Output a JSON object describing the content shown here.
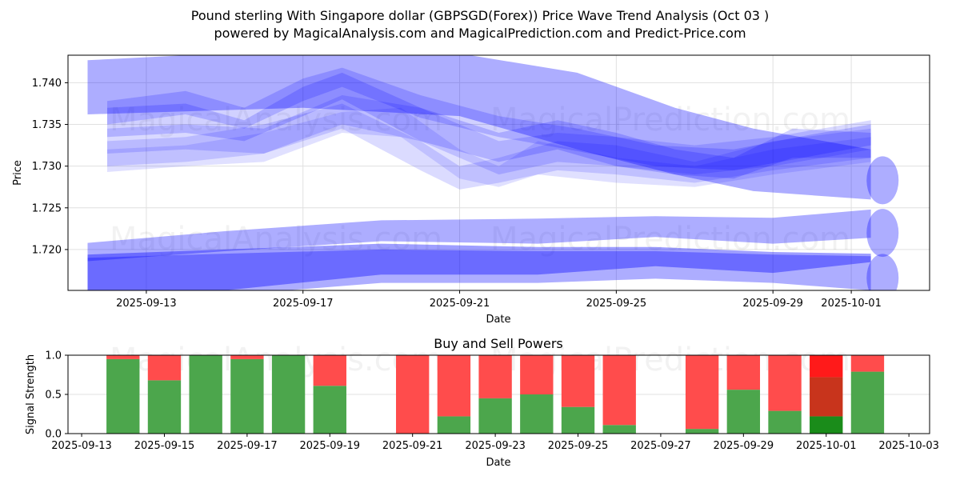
{
  "title_line1": "Pound sterling With Singapore dollar (GBPSGD(Forex)) Price Wave Trend Analysis (Oct 03 )",
  "title_line2": "powered by MagicalAnalysis.com and MagicalPrediction.com and Predict-Price.com",
  "watermarks": [
    "MagicalAnalysis.com",
    "MagicalPrediction.com"
  ],
  "colors": {
    "band": "#0000ff",
    "buy": "#4ca64c",
    "sell": "#ff4c4c",
    "buy_strong": "#1a8c1a",
    "sell_mid": "#c8341c",
    "sell_strong": "#ff1a1a",
    "grid": "#e0e0e0"
  },
  "chart_data": [
    {
      "type": "area",
      "title": "",
      "xlabel": "Date",
      "ylabel": "Price",
      "x_range": [
        "2025-09-11",
        "2025-10-03"
      ],
      "ylim": [
        1.7151,
        1.7433
      ],
      "grid": true,
      "x_ticks": [
        "2025-09-13",
        "2025-09-17",
        "2025-09-21",
        "2025-09-25",
        "2025-09-29",
        "2025-10-01"
      ],
      "y_ticks": [
        "1.720",
        "1.725",
        "1.730",
        "1.735",
        "1.740"
      ],
      "x_tick_days": [
        2,
        6,
        10,
        14,
        18,
        20
      ],
      "y_tick_values": [
        1.72,
        1.725,
        1.73,
        1.735,
        1.74
      ],
      "bands": [
        {
          "name": "wide-upper-band",
          "opacity": 0.32,
          "days": [
            0.5,
            6,
            10,
            13,
            15.5,
            17.5,
            20.5
          ],
          "upper": [
            1.7427,
            1.744,
            1.7435,
            1.7412,
            1.737,
            1.7345,
            1.732
          ],
          "lower": [
            1.7362,
            1.737,
            1.736,
            1.732,
            1.729,
            1.727,
            1.726
          ]
        },
        {
          "name": "wave-band-1",
          "opacity": 0.18,
          "days": [
            1,
            3,
            4.5,
            6,
            7,
            9,
            11,
            13,
            15,
            17,
            19,
            20.5
          ],
          "upper": [
            1.7378,
            1.739,
            1.737,
            1.7405,
            1.7418,
            1.7385,
            1.736,
            1.7345,
            1.7325,
            1.732,
            1.7338,
            1.735
          ],
          "lower": [
            1.735,
            1.7362,
            1.7345,
            1.7378,
            1.7395,
            1.7358,
            1.7335,
            1.7318,
            1.73,
            1.7295,
            1.7312,
            1.7325
          ]
        },
        {
          "name": "wave-band-2",
          "opacity": 0.18,
          "days": [
            1,
            3,
            4.5,
            6,
            7,
            9,
            11,
            12.5,
            14,
            15.5,
            17,
            18.5,
            20.5
          ],
          "upper": [
            1.737,
            1.7375,
            1.7355,
            1.7395,
            1.7412,
            1.737,
            1.734,
            1.7355,
            1.734,
            1.732,
            1.731,
            1.7345,
            1.734
          ],
          "lower": [
            1.7335,
            1.734,
            1.733,
            1.736,
            1.738,
            1.733,
            1.7305,
            1.732,
            1.73,
            1.729,
            1.7285,
            1.731,
            1.731
          ]
        },
        {
          "name": "wave-band-3",
          "opacity": 0.15,
          "days": [
            1,
            3,
            5,
            7,
            9,
            11,
            12.5,
            14,
            16,
            18,
            20.5
          ],
          "upper": [
            1.7345,
            1.735,
            1.7345,
            1.7385,
            1.737,
            1.733,
            1.734,
            1.7335,
            1.7325,
            1.7335,
            1.7355
          ],
          "lower": [
            1.7315,
            1.732,
            1.7315,
            1.735,
            1.733,
            1.729,
            1.7305,
            1.73,
            1.729,
            1.73,
            1.732
          ]
        },
        {
          "name": "wave-band-4",
          "opacity": 0.14,
          "days": [
            1,
            3,
            5,
            7,
            9,
            10,
            11,
            12.5,
            14,
            16,
            18,
            20.5
          ],
          "upper": [
            1.733,
            1.7335,
            1.735,
            1.7375,
            1.733,
            1.73,
            1.731,
            1.733,
            1.7325,
            1.7305,
            1.733,
            1.7345
          ],
          "lower": [
            1.73,
            1.7305,
            1.7315,
            1.7345,
            1.7295,
            1.7272,
            1.728,
            1.7295,
            1.729,
            1.728,
            1.7295,
            1.731
          ]
        },
        {
          "name": "wave-band-5",
          "opacity": 0.12,
          "days": [
            1,
            3,
            5,
            7,
            8.5,
            10,
            11,
            12,
            14,
            16,
            18,
            20.5
          ],
          "upper": [
            1.732,
            1.7325,
            1.734,
            1.7365,
            1.737,
            1.732,
            1.73,
            1.733,
            1.731,
            1.73,
            1.732,
            1.7335
          ],
          "lower": [
            1.7293,
            1.73,
            1.7305,
            1.734,
            1.7335,
            1.7285,
            1.7275,
            1.729,
            1.728,
            1.7275,
            1.729,
            1.7305
          ]
        },
        {
          "name": "mid-band",
          "opacity": 0.32,
          "days": [
            0.5,
            4,
            8,
            12,
            15,
            18,
            20.5
          ],
          "upper": [
            1.7208,
            1.7222,
            1.7235,
            1.7237,
            1.724,
            1.7238,
            1.7248
          ],
          "lower": [
            1.7186,
            1.7198,
            1.721,
            1.7207,
            1.7215,
            1.7207,
            1.7214
          ]
        },
        {
          "name": "lower-dark-band",
          "opacity": 0.38,
          "days": [
            0.5,
            4,
            8,
            12,
            15,
            18,
            20.5
          ],
          "upper": [
            1.7194,
            1.72,
            1.7207,
            1.7203,
            1.7203,
            1.7197,
            1.7195
          ],
          "lower": [
            1.7151,
            1.7151,
            1.717,
            1.717,
            1.718,
            1.7172,
            1.7185
          ]
        },
        {
          "name": "lower-light-band",
          "opacity": 0.32,
          "days": [
            0.5,
            4,
            8,
            12,
            15,
            18,
            20.5
          ],
          "upper": [
            1.719,
            1.7195,
            1.72,
            1.7198,
            1.7198,
            1.7194,
            1.7192
          ],
          "lower": [
            1.714,
            1.7145,
            1.716,
            1.716,
            1.7165,
            1.716,
            1.7151
          ]
        }
      ],
      "end_caps": [
        {
          "name": "cap-upper",
          "day": 20.8,
          "value": 1.7283
        },
        {
          "name": "cap-mid",
          "day": 20.8,
          "value": 1.722
        },
        {
          "name": "cap-lower",
          "day": 20.8,
          "value": 1.7166
        }
      ]
    },
    {
      "type": "bar",
      "title": "Buy and Sell Powers",
      "xlabel": "Date",
      "ylabel": "Signal Strength",
      "x_range_days": [
        -0.33,
        20.5
      ],
      "ylim": [
        0,
        1.0
      ],
      "grid": true,
      "x_ticks": [
        "2025-09-13",
        "2025-09-15",
        "2025-09-17",
        "2025-09-19",
        "2025-09-21",
        "2025-09-23",
        "2025-09-25",
        "2025-09-27",
        "2025-09-29",
        "2025-10-01",
        "2025-10-03"
      ],
      "y_ticks": [
        "0.0",
        "0.5",
        "1.0"
      ],
      "categories": [
        "2025-09-14",
        "2025-09-15",
        "2025-09-16",
        "2025-09-17",
        "2025-09-18",
        "2025-09-19",
        "2025-09-21",
        "2025-09-22",
        "2025-09-23",
        "2025-09-24",
        "2025-09-25",
        "2025-09-26",
        "2025-09-28",
        "2025-09-29",
        "2025-09-30",
        "2025-10-01",
        "2025-10-02"
      ],
      "day_offsets": [
        1,
        2,
        3,
        4,
        5,
        6,
        8,
        9,
        10,
        11,
        12,
        13,
        15,
        16,
        17,
        18,
        19
      ],
      "series": [
        {
          "name": "Buy",
          "values": [
            0.95,
            0.68,
            1.0,
            0.95,
            1.0,
            0.61,
            0.0,
            0.22,
            0.45,
            0.5,
            0.34,
            0.11,
            0.06,
            0.56,
            0.29,
            0.22,
            0.79
          ]
        },
        {
          "name": "Sell",
          "values": [
            0.05,
            0.32,
            0.0,
            0.05,
            0.0,
            0.39,
            1.0,
            0.78,
            0.55,
            0.5,
            0.66,
            0.89,
            0.94,
            0.44,
            0.71,
            0.78,
            0.21
          ]
        }
      ],
      "highlight": {
        "category": "2025-10-01",
        "buy": 0.22,
        "sell_mid_top": 0.72,
        "sell_total": 1.0
      }
    }
  ]
}
